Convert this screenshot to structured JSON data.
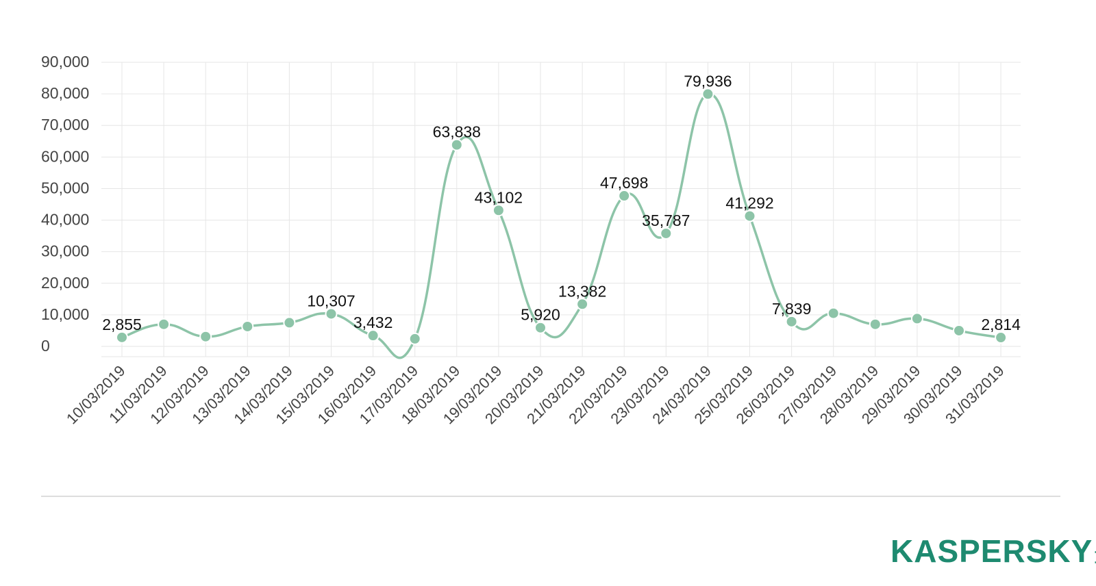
{
  "chart_data": {
    "type": "line",
    "title": "",
    "xlabel": "",
    "ylabel": "",
    "ylim": [
      0,
      90000
    ],
    "yticks": [
      0,
      10000,
      20000,
      30000,
      40000,
      50000,
      60000,
      70000,
      80000,
      90000
    ],
    "ytick_labels": [
      "0",
      "10,000",
      "20,000",
      "30,000",
      "40,000",
      "50,000",
      "60,000",
      "70,000",
      "80,000",
      "90,000"
    ],
    "grid": true,
    "smooth": true,
    "line_color": "#8dc4a8",
    "marker_color": "#8dc4a8",
    "categories": [
      "10/03/2019",
      "11/03/2019",
      "12/03/2019",
      "13/03/2019",
      "14/03/2019",
      "15/03/2019",
      "16/03/2019",
      "17/03/2019",
      "18/03/2019",
      "19/03/2019",
      "20/03/2019",
      "21/03/2019",
      "22/03/2019",
      "23/03/2019",
      "24/03/2019",
      "25/03/2019",
      "26/03/2019",
      "27/03/2019",
      "28/03/2019",
      "29/03/2019",
      "30/03/2019",
      "31/03/2019"
    ],
    "series": [
      {
        "values": [
          2855,
          7000,
          3100,
          6300,
          7500,
          10307,
          3432,
          2400,
          63838,
          43102,
          5920,
          13382,
          47698,
          35787,
          79936,
          41292,
          7839,
          10500,
          7000,
          8800,
          5000,
          2814
        ]
      }
    ],
    "data_labels": [
      {
        "index": 0,
        "text": "2,855"
      },
      {
        "index": 5,
        "text": "10,307"
      },
      {
        "index": 6,
        "text": "3,432"
      },
      {
        "index": 8,
        "text": "63,838"
      },
      {
        "index": 9,
        "text": "43,102"
      },
      {
        "index": 10,
        "text": "5,920"
      },
      {
        "index": 11,
        "text": "13,382"
      },
      {
        "index": 12,
        "text": "47,698"
      },
      {
        "index": 13,
        "text": "35,787"
      },
      {
        "index": 14,
        "text": "79,936"
      },
      {
        "index": 15,
        "text": "41,292"
      },
      {
        "index": 16,
        "text": "7,839"
      },
      {
        "index": 21,
        "text": "2,814"
      }
    ]
  },
  "logo": {
    "wordmark": "KASPERSKY",
    "suffix": "lab",
    "color": "#1e8a70",
    "accent_color": "#e8323c",
    "icon": "kaspersky-lab-logo"
  }
}
